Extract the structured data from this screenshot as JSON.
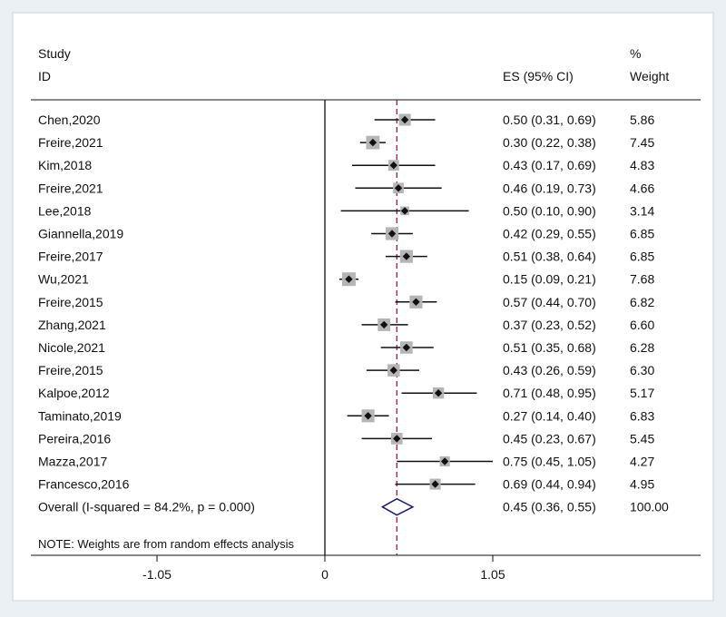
{
  "chart_data": {
    "type": "forest",
    "header": {
      "study_line1": "Study",
      "study_line2": "ID",
      "es_label": "ES (95% CI)",
      "weight_line1": "%",
      "weight_line2": "Weight"
    },
    "studies": [
      {
        "id": "Chen,2020",
        "es": 0.5,
        "lo": 0.31,
        "hi": 0.69,
        "es_text": "0.50 (0.31, 0.69)",
        "weight": "5.86"
      },
      {
        "id": "Freire,2021",
        "es": 0.3,
        "lo": 0.22,
        "hi": 0.38,
        "es_text": "0.30 (0.22, 0.38)",
        "weight": "7.45"
      },
      {
        "id": "Kim,2018",
        "es": 0.43,
        "lo": 0.17,
        "hi": 0.69,
        "es_text": "0.43 (0.17, 0.69)",
        "weight": "4.83"
      },
      {
        "id": "Freire,2021",
        "es": 0.46,
        "lo": 0.19,
        "hi": 0.73,
        "es_text": "0.46 (0.19, 0.73)",
        "weight": "4.66"
      },
      {
        "id": "Lee,2018",
        "es": 0.5,
        "lo": 0.1,
        "hi": 0.9,
        "es_text": "0.50 (0.10, 0.90)",
        "weight": "3.14"
      },
      {
        "id": "Giannella,2019",
        "es": 0.42,
        "lo": 0.29,
        "hi": 0.55,
        "es_text": "0.42 (0.29, 0.55)",
        "weight": "6.85"
      },
      {
        "id": "Freire,2017",
        "es": 0.51,
        "lo": 0.38,
        "hi": 0.64,
        "es_text": "0.51 (0.38, 0.64)",
        "weight": "6.85"
      },
      {
        "id": "Wu,2021",
        "es": 0.15,
        "lo": 0.09,
        "hi": 0.21,
        "es_text": "0.15 (0.09, 0.21)",
        "weight": "7.68"
      },
      {
        "id": "Freire,2015",
        "es": 0.57,
        "lo": 0.44,
        "hi": 0.7,
        "es_text": "0.57 (0.44, 0.70)",
        "weight": "6.82"
      },
      {
        "id": "Zhang,2021",
        "es": 0.37,
        "lo": 0.23,
        "hi": 0.52,
        "es_text": "0.37 (0.23, 0.52)",
        "weight": "6.60"
      },
      {
        "id": "Nicole,2021",
        "es": 0.51,
        "lo": 0.35,
        "hi": 0.68,
        "es_text": "0.51 (0.35, 0.68)",
        "weight": "6.28"
      },
      {
        "id": "Freire,2015",
        "es": 0.43,
        "lo": 0.26,
        "hi": 0.59,
        "es_text": "0.43 (0.26, 0.59)",
        "weight": "6.30"
      },
      {
        "id": "Kalpoe,2012",
        "es": 0.71,
        "lo": 0.48,
        "hi": 0.95,
        "es_text": "0.71 (0.48, 0.95)",
        "weight": "5.17"
      },
      {
        "id": "Taminato,2019",
        "es": 0.27,
        "lo": 0.14,
        "hi": 0.4,
        "es_text": "0.27 (0.14, 0.40)",
        "weight": "6.83"
      },
      {
        "id": "Pereira,2016",
        "es": 0.45,
        "lo": 0.23,
        "hi": 0.67,
        "es_text": "0.45 (0.23, 0.67)",
        "weight": "5.45"
      },
      {
        "id": "Mazza,2017",
        "es": 0.75,
        "lo": 0.45,
        "hi": 1.05,
        "es_text": "0.75 (0.45, 1.05)",
        "weight": "4.27"
      },
      {
        "id": "Francesco,2016",
        "es": 0.69,
        "lo": 0.44,
        "hi": 0.94,
        "es_text": "0.69 (0.44, 0.94)",
        "weight": "4.95"
      }
    ],
    "overall": {
      "label": "Overall  (I-squared = 84.2%, p = 0.000)",
      "es": 0.45,
      "lo": 0.36,
      "hi": 0.55,
      "es_text": "0.45 (0.36, 0.55)",
      "weight": "100.00"
    },
    "note": "NOTE: Weights are from random effects analysis",
    "x_axis": {
      "range": [
        -1.05,
        1.05
      ],
      "null_line": 0,
      "ticks": [
        {
          "value": -1.05,
          "label": "-1.05"
        },
        {
          "value": 0,
          "label": "0"
        },
        {
          "value": 1.05,
          "label": "1.05"
        }
      ]
    },
    "colors": {
      "overall_diamond": "#1a1a6e",
      "pooled_line": "#9b1c3c",
      "weight_box": "#b5b5b5",
      "point": "#111111"
    }
  }
}
